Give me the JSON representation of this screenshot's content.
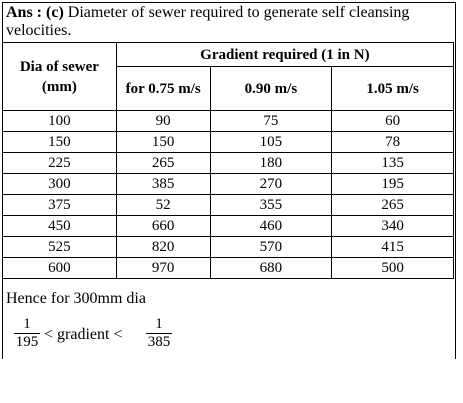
{
  "answer": {
    "prefix": "Ans : (c)",
    "text": " Diameter of sewer required to generate self cleansing velocities."
  },
  "table": {
    "col1_header": "Dia of sewer (mm)",
    "group_header": "Gradient required (1 in N)",
    "sub_headers": [
      "for 0.75 m/s",
      "0.90 m/s",
      "1.05 m/s"
    ],
    "rows": [
      [
        "100",
        "90",
        "75",
        "60"
      ],
      [
        "150",
        "150",
        "105",
        "78"
      ],
      [
        "225",
        "265",
        "180",
        "135"
      ],
      [
        "300",
        "385",
        "270",
        "195"
      ],
      [
        "375",
        "52",
        "355",
        "265"
      ],
      [
        "450",
        "660",
        "460",
        "340"
      ],
      [
        "525",
        "820",
        "570",
        "415"
      ],
      [
        "600",
        "970",
        "680",
        "500"
      ]
    ]
  },
  "conclusion": {
    "line": "Hence for 300mm dia",
    "left_num": "1",
    "left_den": "195",
    "middle": "< gradient <",
    "right_num": "1",
    "right_den": "385"
  }
}
